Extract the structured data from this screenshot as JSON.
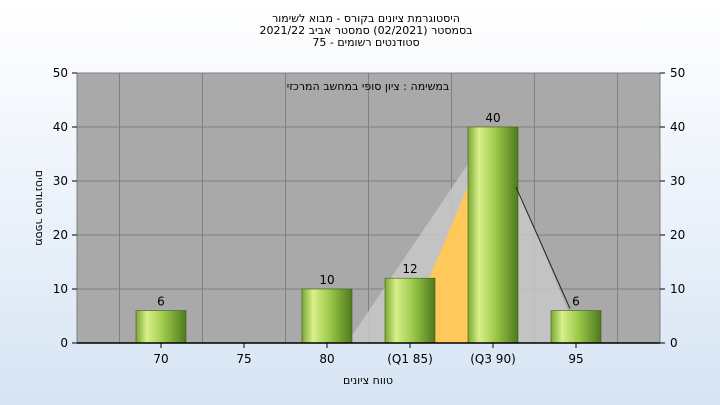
{
  "chart_data": {
    "type": "bar",
    "title_lines": [
      "היסטוגרמת ציונים בקורס - מבוא לשימור",
      "בסמסטר  (02/2021)  סמסטר אביב 2021/22",
      "סטודנטים רשומים - 75"
    ],
    "annotation": "במשימה : ציון סופי במחשב המרכזי",
    "xlabel": "טווח ציונים",
    "ylabel": "מספר סטודנטים",
    "categories": [
      "70",
      "75",
      "80",
      "(Q1 85)",
      "(Q3 90)",
      "95"
    ],
    "values": [
      6,
      0,
      10,
      12,
      40,
      6
    ],
    "value_labels": [
      "6",
      "",
      "10",
      "12",
      "40",
      "6"
    ],
    "ylim": [
      0,
      50
    ],
    "yticks": [
      "0",
      "10",
      "20",
      "30",
      "40",
      "50"
    ],
    "grid": true,
    "secondary_y_axis": true,
    "colors": {
      "plot_bg": "#a9a9a9",
      "bar_light": "#d8f08c",
      "bar_mid": "#9cc94a",
      "bar_dark": "#4e7a1c",
      "iqr_fill": "#ffc85a",
      "range_fill": "#c8c8c8"
    }
  }
}
